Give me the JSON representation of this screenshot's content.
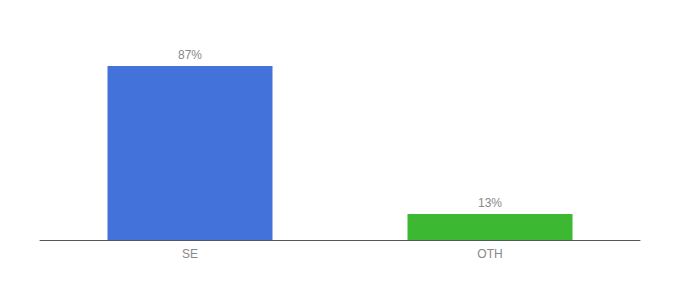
{
  "chart_data": {
    "type": "bar",
    "categories": [
      "SE",
      "OTH"
    ],
    "values": [
      87,
      13
    ],
    "value_labels": [
      "87%",
      "13%"
    ],
    "colors": [
      "#4472db",
      "#3db832"
    ],
    "ylim": [
      0,
      100
    ],
    "grid": false,
    "tick_labels": "x",
    "data_labels": true
  }
}
